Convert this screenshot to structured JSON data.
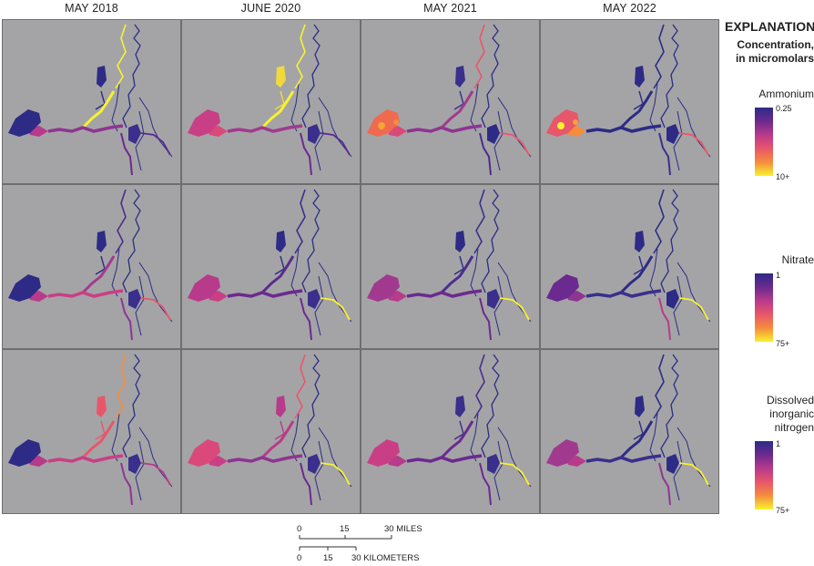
{
  "columns": [
    "MAY 2018",
    "JUNE 2020",
    "MAY 2021",
    "MAY 2022"
  ],
  "legend": {
    "title": "EXPLANATION",
    "subtitle": "Concentration, in micromolars",
    "items": [
      {
        "name": "Ammonium",
        "name_lines": [
          "Ammonium"
        ],
        "low": "0.25",
        "high": "10+",
        "ramp": [
          "#2d2b86",
          "#6b2a8f",
          "#b83a8b",
          "#e8566a",
          "#f58d3c",
          "#f8f230"
        ]
      },
      {
        "name": "Nitrate",
        "name_lines": [
          "Nitrate"
        ],
        "low": "1",
        "high": "75+",
        "ramp": [
          "#2d2b86",
          "#6b2a8f",
          "#b83a8b",
          "#e8566a",
          "#f58d3c",
          "#f8f230"
        ]
      },
      {
        "name": "Dissolved inorganic nitrogen",
        "name_lines": [
          "Dissolved",
          "inorganic",
          "nitrogen"
        ],
        "low": "1",
        "high": "75+",
        "ramp": [
          "#2d2b86",
          "#6b2a8f",
          "#b83a8b",
          "#e8566a",
          "#f58d3c",
          "#f8f230"
        ]
      }
    ]
  },
  "scalebar": {
    "miles_ticks": [
      "0",
      "15",
      "30 MILES"
    ],
    "km_ticks": [
      "0",
      "15",
      "30 KILOMETERS"
    ]
  },
  "panels": [
    [
      {
        "bay": "#2d2b86",
        "west": "#b83a8b",
        "mid": "#8e3592",
        "sac": "#f8f230",
        "north": "#f8f230",
        "branch": "#2d2b86",
        "delta": "#3a2f8c",
        "sjr": "#6b2a8f",
        "east": "#5a2b8e",
        "trib": "#2d2b86",
        "hot": []
      },
      {
        "bay": "#c93f86",
        "west": "#d94979",
        "mid": "#a13a8f",
        "sac": "#f8f230",
        "north": "#f8f230",
        "branch": "#f2d93a",
        "delta": "#3a2f8c",
        "sjr": "#6b2a8f",
        "east": "#5a2b8e",
        "trib": "#2d2b86",
        "hot": []
      },
      {
        "bay": "#ef6a4f",
        "west": "#d94979",
        "mid": "#8e3592",
        "sac": "#a13a8f",
        "north": "#e8566a",
        "branch": "#3a2f8c",
        "delta": "#2d2b86",
        "sjr": "#4a2d8d",
        "east": "#e8566a",
        "trib": "#2d2b86",
        "hot": [
          "#f6a23a",
          "#f58d3c"
        ]
      },
      {
        "bay": "#e8566a",
        "west": "#f58d3c",
        "mid": "#2d2b86",
        "sac": "#2d2b86",
        "north": "#2d2b86",
        "branch": "#2d2b86",
        "delta": "#2d2b86",
        "sjr": "#3a2f8c",
        "east": "#e8566a",
        "trib": "#2d2b86",
        "hot": [
          "#f8f230",
          "#f6a23a"
        ]
      }
    ],
    [
      {
        "bay": "#2d2b86",
        "west": "#b83a8b",
        "mid": "#c93f86",
        "sac": "#a13a8f",
        "north": "#4a2d8d",
        "branch": "#2d2b86",
        "delta": "#3a2f8c",
        "sjr": "#8e3592",
        "east": "#e8566a",
        "trib": "#2d2b86",
        "hot": []
      },
      {
        "bay": "#b83a8b",
        "west": "#c93f86",
        "mid": "#6b2a8f",
        "sac": "#5a2b8e",
        "north": "#3a2f8c",
        "branch": "#2d2b86",
        "delta": "#3a2f8c",
        "sjr": "#6b2a8f",
        "east": "#f8f230",
        "trib": "#2d2b86",
        "hot": []
      },
      {
        "bay": "#a13a8f",
        "west": "#b83a8b",
        "mid": "#6b2a8f",
        "sac": "#4a2d8d",
        "north": "#3a2f8c",
        "branch": "#2d2b86",
        "delta": "#3a2f8c",
        "sjr": "#6b2a8f",
        "east": "#f8f230",
        "trib": "#2d2b86",
        "hot": []
      },
      {
        "bay": "#6b2a8f",
        "west": "#8e3592",
        "mid": "#3a2f8c",
        "sac": "#2d2b86",
        "north": "#2d2b86",
        "branch": "#2d2b86",
        "delta": "#2d2b86",
        "sjr": "#b83a8b",
        "east": "#f8f230",
        "trib": "#2d2b86",
        "hot": []
      }
    ],
    [
      {
        "bay": "#2d2b86",
        "west": "#b83a8b",
        "mid": "#c93f86",
        "sac": "#e8566a",
        "north": "#f58d3c",
        "branch": "#e8566a",
        "delta": "#3a2f8c",
        "sjr": "#8e3592",
        "east": "#b83a8b",
        "trib": "#2d2b86",
        "hot": []
      },
      {
        "bay": "#d94979",
        "west": "#c93f86",
        "mid": "#8e3592",
        "sac": "#b83a8b",
        "north": "#e8566a",
        "branch": "#b83a8b",
        "delta": "#3a2f8c",
        "sjr": "#6b2a8f",
        "east": "#f8f230",
        "trib": "#2d2b86",
        "hot": []
      },
      {
        "bay": "#c93f86",
        "west": "#b83a8b",
        "mid": "#6b2a8f",
        "sac": "#6b2a8f",
        "north": "#4a2d8d",
        "branch": "#3a2f8c",
        "delta": "#3a2f8c",
        "sjr": "#6b2a8f",
        "east": "#f8f230",
        "trib": "#2d2b86",
        "hot": []
      },
      {
        "bay": "#a13a8f",
        "west": "#b83a8b",
        "mid": "#3a2f8c",
        "sac": "#2d2b86",
        "north": "#2d2b86",
        "branch": "#2d2b86",
        "delta": "#2d2b86",
        "sjr": "#8e3592",
        "east": "#f8f230",
        "trib": "#2d2b86",
        "hot": []
      }
    ]
  ]
}
